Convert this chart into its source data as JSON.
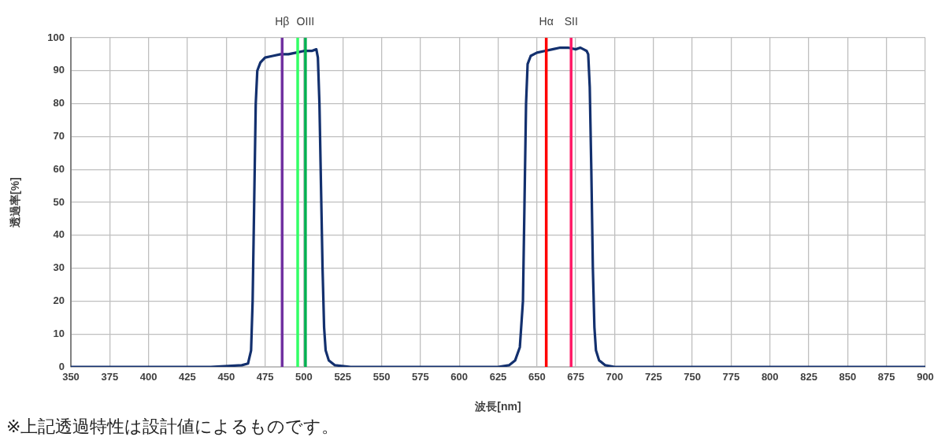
{
  "chart_data": {
    "type": "line",
    "xlabel": "波長[nm]",
    "ylabel": "透過率[%]",
    "x": [
      350,
      440,
      460,
      464,
      466,
      467,
      468,
      469,
      470,
      472,
      475,
      480,
      485,
      490,
      495,
      500,
      505,
      508,
      509,
      510,
      511,
      512,
      513,
      514,
      516,
      520,
      530,
      625,
      632,
      636,
      639,
      641,
      642,
      643,
      644,
      646,
      650,
      655,
      660,
      665,
      670,
      675,
      678,
      680,
      682,
      683,
      684,
      685,
      686,
      687,
      688,
      690,
      694,
      700,
      900
    ],
    "values": [
      0,
      0,
      0.5,
      1,
      5,
      20,
      50,
      80,
      90,
      92.5,
      94,
      94.5,
      95,
      95,
      95.5,
      96,
      96,
      96.5,
      94,
      80,
      55,
      30,
      12,
      5,
      2,
      0.5,
      0,
      0,
      0.5,
      2,
      6,
      20,
      50,
      80,
      92,
      94.5,
      95.5,
      96,
      96.5,
      97,
      97,
      96.5,
      97,
      96.5,
      96,
      95,
      85,
      60,
      30,
      12,
      5,
      2,
      0.5,
      0,
      0
    ],
    "color": "#13306e",
    "marker": "none",
    "line_style": "solid",
    "xlim": [
      350,
      900
    ],
    "xticks": [
      350,
      375,
      400,
      425,
      450,
      475,
      500,
      525,
      550,
      575,
      600,
      625,
      650,
      675,
      700,
      725,
      750,
      775,
      800,
      825,
      850,
      875,
      900
    ],
    "ylim": [
      0,
      100
    ],
    "yticks": [
      0,
      10,
      20,
      30,
      40,
      50,
      60,
      70,
      80,
      90,
      100
    ],
    "grid": true,
    "ref_lines": [
      {
        "axis": "x",
        "value": 486,
        "label": "Hβ",
        "color": "#7030a0"
      },
      {
        "axis": "x",
        "value": 496,
        "color": "#33ff66"
      },
      {
        "axis": "x",
        "value": 501,
        "label": "OIII",
        "color": "#00b050"
      },
      {
        "axis": "x",
        "value": 656,
        "label": "Hα",
        "color": "#ff0000"
      },
      {
        "axis": "x",
        "value": 672,
        "label": "SII",
        "color": "#ff1a66"
      }
    ],
    "annotations": [
      "※上記透過特性は設計値によるものです。"
    ]
  }
}
